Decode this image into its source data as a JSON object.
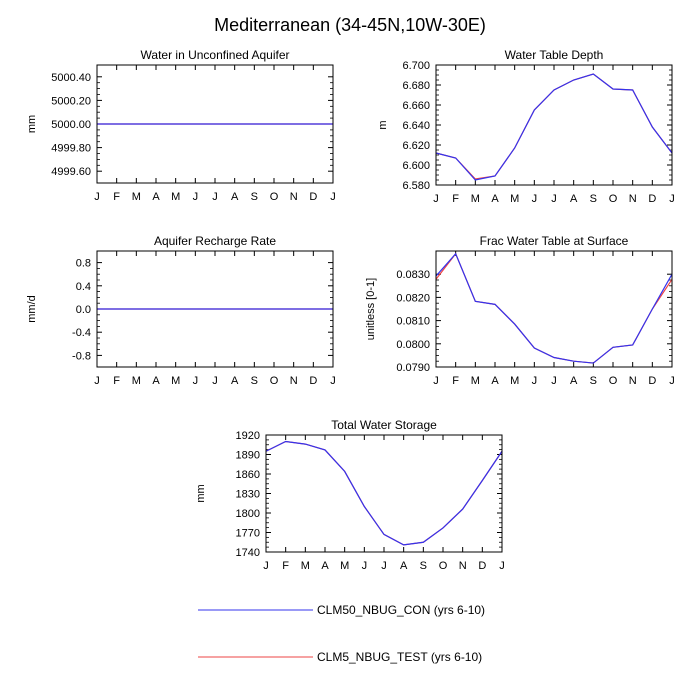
{
  "page": {
    "title": "Mediterranean (34-45N,10W-30E)"
  },
  "colors": {
    "con": "#3333ee",
    "test": "#ee4444",
    "frame": "#000000"
  },
  "legend": [
    {
      "label": "CLM50_NBUG_CON (yrs 6-10)",
      "color": "#3333ee"
    },
    {
      "label": "CLM5_NBUG_TEST (yrs 6-10)",
      "color": "#ee4444"
    }
  ],
  "chart_data": [
    {
      "type": "line",
      "title": "Water in Unconfined Aquifer",
      "xlabel": "",
      "ylabel": "mm",
      "categories": [
        "J",
        "F",
        "M",
        "A",
        "M",
        "J",
        "J",
        "A",
        "S",
        "O",
        "N",
        "D",
        "J"
      ],
      "ylim": [
        4999.5,
        5000.5
      ],
      "yticks": [
        4999.6,
        4999.8,
        5000.0,
        5000.2,
        5000.4
      ],
      "yticklabels": [
        "4999.60",
        "4999.80",
        "5000.00",
        "5000.20",
        "5000.40"
      ],
      "series": [
        {
          "name": "CLM50_NBUG_CON (yrs 6-10)",
          "values": [
            5000,
            5000,
            5000,
            5000,
            5000,
            5000,
            5000,
            5000,
            5000,
            5000,
            5000,
            5000,
            5000
          ]
        },
        {
          "name": "CLM5_NBUG_TEST (yrs 6-10)",
          "values": [
            5000,
            5000,
            5000,
            5000,
            5000,
            5000,
            5000,
            5000,
            5000,
            5000,
            5000,
            5000,
            5000
          ]
        }
      ]
    },
    {
      "type": "line",
      "title": "Water Table Depth",
      "xlabel": "",
      "ylabel": "m",
      "categories": [
        "J",
        "F",
        "M",
        "A",
        "M",
        "J",
        "J",
        "A",
        "S",
        "O",
        "N",
        "D",
        "J"
      ],
      "ylim": [
        6.58,
        6.7
      ],
      "yticks": [
        6.58,
        6.6,
        6.62,
        6.64,
        6.66,
        6.68,
        6.7
      ],
      "yticklabels": [
        "6.580",
        "6.600",
        "6.620",
        "6.640",
        "6.660",
        "6.680",
        "6.700"
      ],
      "series": [
        {
          "name": "CLM50_NBUG_CON (yrs 6-10)",
          "values": [
            6.612,
            6.607,
            6.585,
            6.589,
            6.617,
            6.655,
            6.675,
            6.685,
            6.691,
            6.676,
            6.675,
            6.638,
            6.612
          ]
        },
        {
          "name": "CLM5_NBUG_TEST (yrs 6-10)",
          "values": [
            6.612,
            6.607,
            6.586,
            6.589,
            6.617,
            6.655,
            6.675,
            6.685,
            6.691,
            6.676,
            6.675,
            6.638,
            6.612
          ]
        }
      ]
    },
    {
      "type": "line",
      "title": "Aquifer Recharge Rate",
      "xlabel": "",
      "ylabel": "mm/d",
      "categories": [
        "J",
        "F",
        "M",
        "A",
        "M",
        "J",
        "J",
        "A",
        "S",
        "O",
        "N",
        "D",
        "J"
      ],
      "ylim": [
        -1.0,
        1.0
      ],
      "yticks": [
        -0.8,
        -0.4,
        0.0,
        0.4,
        0.8
      ],
      "yticklabels": [
        "-0.8",
        "-0.4",
        "0.0",
        "0.4",
        "0.8"
      ],
      "series": [
        {
          "name": "CLM50_NBUG_CON (yrs 6-10)",
          "values": [
            0,
            0,
            0,
            0,
            0,
            0,
            0,
            0,
            0,
            0,
            0,
            0,
            0
          ]
        },
        {
          "name": "CLM5_NBUG_TEST (yrs 6-10)",
          "values": [
            0,
            0,
            0,
            0,
            0,
            0,
            0,
            0,
            0,
            0,
            0,
            0,
            0
          ]
        }
      ]
    },
    {
      "type": "line",
      "title": "Frac Water Table at Surface",
      "xlabel": "",
      "ylabel": "unitless [0-1]",
      "categories": [
        "J",
        "F",
        "M",
        "A",
        "M",
        "J",
        "J",
        "A",
        "S",
        "O",
        "N",
        "D",
        "J"
      ],
      "ylim": [
        0.079,
        0.084
      ],
      "yticks": [
        0.079,
        0.08,
        0.081,
        0.082,
        0.083
      ],
      "yticklabels": [
        "0.0790",
        "0.0800",
        "0.0810",
        "0.0820",
        "0.0830"
      ],
      "series": [
        {
          "name": "CLM50_NBUG_CON (yrs 6-10)",
          "values": [
            0.08292,
            0.08388,
            0.08183,
            0.0817,
            0.08085,
            0.07982,
            0.07941,
            0.07925,
            0.07917,
            0.07985,
            0.07995,
            0.0815,
            0.083
          ]
        },
        {
          "name": "CLM5_NBUG_TEST (yrs 6-10)",
          "values": [
            0.08278,
            0.08388,
            0.08183,
            0.0817,
            0.08085,
            0.07982,
            0.07941,
            0.07925,
            0.07917,
            0.07985,
            0.07995,
            0.0815,
            0.08278
          ]
        }
      ]
    },
    {
      "type": "line",
      "title": "Total Water Storage",
      "xlabel": "",
      "ylabel": "mm",
      "categories": [
        "J",
        "F",
        "M",
        "A",
        "M",
        "J",
        "J",
        "A",
        "S",
        "O",
        "N",
        "D",
        "J"
      ],
      "ylim": [
        1740,
        1920
      ],
      "yticks": [
        1740,
        1770,
        1800,
        1830,
        1860,
        1890,
        1920
      ],
      "yticklabels": [
        "1740",
        "1770",
        "1800",
        "1830",
        "1860",
        "1890",
        "1920"
      ],
      "series": [
        {
          "name": "CLM50_NBUG_CON (yrs 6-10)",
          "values": [
            1895,
            1910,
            1906,
            1897,
            1864,
            1810,
            1767,
            1751,
            1755,
            1777,
            1806,
            1850,
            1895
          ]
        },
        {
          "name": "CLM5_NBUG_TEST (yrs 6-10)",
          "values": [
            1895,
            1910,
            1906,
            1897,
            1864,
            1810,
            1767,
            1751,
            1755,
            1777,
            1806,
            1850,
            1895
          ]
        }
      ]
    }
  ]
}
